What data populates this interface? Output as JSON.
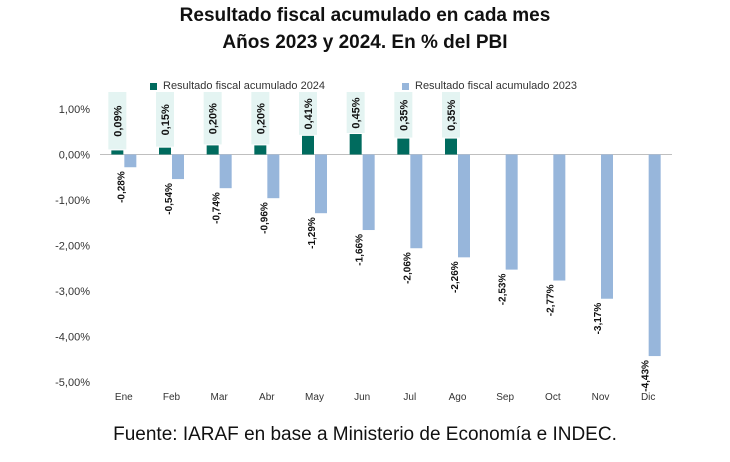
{
  "chart_data": {
    "type": "bar",
    "title": "Resultado fiscal acumulado en cada mes",
    "subtitle": "Años 2023 y 2024. En % del PBI",
    "categories": [
      "Ene",
      "Feb",
      "Mar",
      "Abr",
      "May",
      "Jun",
      "Jul",
      "Ago",
      "Sep",
      "Oct",
      "Nov",
      "Dic"
    ],
    "series": [
      {
        "name": "Resultado fiscal acumulado 2024",
        "color": "#006b5e",
        "values": [
          0.09,
          0.15,
          0.2,
          0.2,
          0.41,
          0.45,
          0.35,
          0.35,
          null,
          null,
          null,
          null
        ],
        "labels": [
          "0,09%",
          "0,15%",
          "0,20%",
          "0,20%",
          "0,41%",
          "0,45%",
          "0,35%",
          "0,35%",
          null,
          null,
          null,
          null
        ]
      },
      {
        "name": "Resultado fiscal acumulado 2023",
        "color": "#97b6db",
        "values": [
          -0.28,
          -0.54,
          -0.74,
          -0.96,
          -1.29,
          -1.66,
          -2.06,
          -2.26,
          -2.53,
          -2.77,
          -3.17,
          -4.43
        ],
        "labels": [
          "-0,28%",
          "-0,54%",
          "-0,74%",
          "-0,96%",
          "-1,29%",
          "-1,66%",
          "-2,06%",
          "-2,26%",
          "-2,53%",
          "-2,77%",
          "-3,17%",
          "-4,43%"
        ]
      }
    ],
    "yticks": [
      1,
      0,
      -1,
      -2,
      -3,
      -4,
      -5
    ],
    "ytick_labels": [
      "1,00%",
      "0,00%",
      "-1,00%",
      "-2,00%",
      "-3,00%",
      "-4,00%",
      "-5,00%"
    ],
    "ylim": [
      -5,
      1
    ],
    "xlabel": "",
    "ylabel": "",
    "legend": "top",
    "label_highlight": "#e4f4f2"
  },
  "source": "Fuente: IARAF en base a Ministerio de Economía e INDEC."
}
